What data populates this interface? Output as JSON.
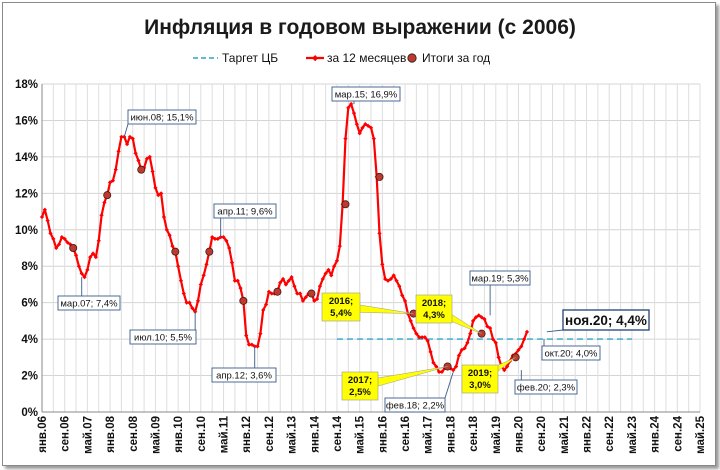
{
  "chart_data": {
    "type": "line",
    "title": "Инфляция в годовом выражении (с 2006)",
    "ylim": [
      0,
      18
    ],
    "yticks": [
      "0%",
      "2%",
      "4%",
      "6%",
      "8%",
      "10%",
      "12%",
      "14%",
      "16%",
      "18%"
    ],
    "xticks": [
      "янв.06",
      "сен.06",
      "май.07",
      "янв.08",
      "сен.08",
      "май.09",
      "янв.10",
      "сен.10",
      "май.11",
      "янв.12",
      "сен.12",
      "май.13",
      "янв.14",
      "сен.14",
      "май.15",
      "янв.16",
      "сен.16",
      "май.17",
      "янв.18",
      "сен.18",
      "май.19",
      "янв.20",
      "сен.20",
      "май.21",
      "янв.22",
      "сен.22",
      "май.23",
      "янв.24",
      "сен.24",
      "май.25"
    ],
    "grid": true,
    "legend_position": "top",
    "legend": [
      {
        "label": "Таргет ЦБ",
        "color": "#2aa7c9",
        "style": "dashed"
      },
      {
        "label": "за 12 месяцев",
        "color": "#ff0000",
        "style": "line-markers"
      },
      {
        "label": "Итоги за год",
        "color": "#c0392b",
        "style": "dot"
      }
    ],
    "target": {
      "value": 4,
      "from_month": 104,
      "to_month": 208
    },
    "series_monthly": {
      "start": "янв.06",
      "values": [
        10.7,
        11.1,
        10.5,
        9.8,
        9.5,
        9.0,
        9.2,
        9.6,
        9.5,
        9.3,
        9.2,
        9.0,
        8.6,
        8.0,
        7.6,
        7.4,
        7.8,
        8.5,
        8.7,
        8.5,
        9.4,
        10.8,
        11.5,
        11.9,
        12.6,
        12.7,
        13.3,
        14.3,
        15.1,
        15.1,
        14.7,
        15.1,
        15.0,
        14.2,
        13.8,
        13.3,
        13.4,
        13.9,
        14.0,
        13.2,
        12.3,
        11.9,
        12.0,
        10.7,
        10.0,
        9.7,
        9.1,
        8.8,
        8.0,
        7.2,
        6.5,
        6.0,
        6.0,
        5.7,
        5.5,
        6.1,
        7.0,
        7.5,
        8.1,
        8.8,
        9.6,
        9.5,
        9.5,
        9.6,
        9.6,
        9.4,
        9.0,
        8.2,
        7.2,
        7.2,
        6.8,
        6.1,
        4.2,
        3.7,
        3.7,
        3.6,
        3.6,
        4.3,
        5.6,
        5.9,
        6.6,
        6.5,
        6.5,
        6.6,
        7.1,
        7.3,
        7.0,
        7.2,
        7.4,
        6.9,
        6.5,
        6.5,
        6.1,
        6.3,
        6.5,
        6.5,
        6.1,
        6.2,
        6.9,
        7.3,
        7.6,
        7.8,
        7.5,
        8.0,
        8.3,
        9.1,
        11.4,
        15.0,
        16.7,
        16.9,
        16.4,
        15.8,
        15.3,
        15.6,
        15.8,
        15.7,
        15.6,
        15.0,
        12.9,
        9.8,
        8.1,
        7.3,
        7.2,
        7.3,
        7.5,
        7.2,
        6.9,
        6.4,
        6.1,
        5.4,
        5.0,
        4.6,
        4.3,
        4.1,
        4.1,
        4.1,
        3.9,
        3.3,
        2.7,
        2.5,
        2.2,
        2.2,
        2.4,
        2.4,
        2.4,
        2.3,
        2.5,
        3.1,
        3.4,
        3.5,
        3.8,
        4.3,
        5.0,
        5.2,
        5.3,
        5.2,
        5.1,
        4.7,
        4.6,
        4.0,
        3.8,
        3.0,
        2.5,
        2.3,
        2.5,
        2.8,
        3.1,
        3.2,
        3.4,
        3.6,
        4.0,
        4.4
      ],
      "year_end_points": [
        9.0,
        11.9,
        13.3,
        8.8,
        8.8,
        6.1,
        6.6,
        6.5,
        11.4,
        12.9,
        5.4,
        2.5,
        4.3,
        3.0
      ]
    },
    "annotations": [
      {
        "text": "мар.07; 7,4%",
        "style": "box"
      },
      {
        "text": "июн.08; 15,1%",
        "style": "box"
      },
      {
        "text": "июл.10; 5,5%",
        "style": "box"
      },
      {
        "text": "апр.11; 9,6%",
        "style": "box"
      },
      {
        "text": "апр.12; 3,6%",
        "style": "box"
      },
      {
        "text": "мар.15; 16,9%",
        "style": "box"
      },
      {
        "text": "фев.18; 2,2%",
        "style": "box"
      },
      {
        "text": "мар.19; 5,3%",
        "style": "box"
      },
      {
        "text": "окт.20; 4,0%",
        "style": "box"
      },
      {
        "text": "фев.20; 2,3%",
        "style": "box"
      },
      {
        "text": "ноя.20; 4,4%",
        "style": "box-large"
      },
      {
        "text_lines": [
          "2016;",
          "5,4%"
        ],
        "style": "yellow"
      },
      {
        "text_lines": [
          "2017;",
          "2,5%"
        ],
        "style": "yellow"
      },
      {
        "text_lines": [
          "2018;",
          "4,3%"
        ],
        "style": "yellow"
      },
      {
        "text_lines": [
          "2019;",
          "3,0%"
        ],
        "style": "yellow"
      }
    ],
    "colors": {
      "line": "#ff0000",
      "target": "#2aa7c9",
      "year_dot": "#c0392b",
      "callout_yellow": "#ffff00"
    }
  }
}
